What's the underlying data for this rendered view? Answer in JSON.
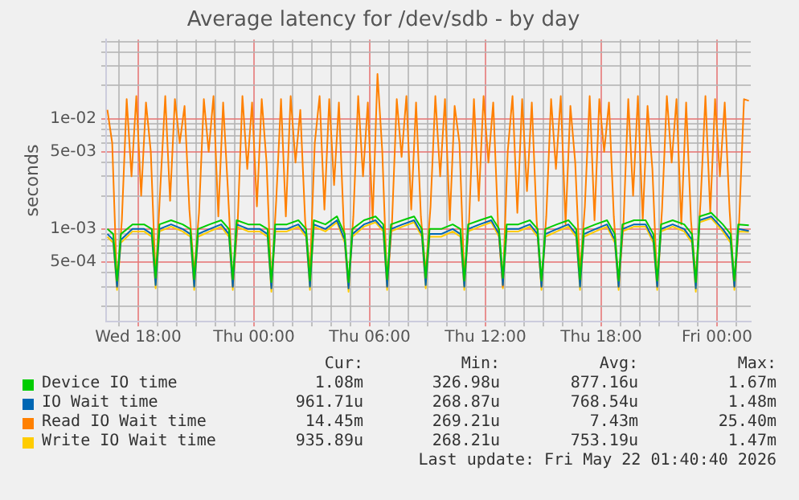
{
  "chart_data": {
    "type": "line",
    "title": "Average latency for /dev/sdb - by day",
    "ylabel": "seconds",
    "log": true,
    "grid": true,
    "legend": "bottom",
    "marker": "none",
    "line_style": "solid",
    "xlim": [
      "2026-05-20T16:20",
      "2026-05-22T01:45"
    ],
    "xticks": [
      {
        "value": "2026-05-20T17:00",
        "label": null
      },
      {
        "value": "2026-05-20T18:00",
        "label": "Wed 18:00"
      },
      {
        "value": "2026-05-20T19:00",
        "label": null
      },
      {
        "value": "2026-05-20T20:00",
        "label": null
      },
      {
        "value": "2026-05-20T21:00",
        "label": null
      },
      {
        "value": "2026-05-20T22:00",
        "label": null
      },
      {
        "value": "2026-05-20T23:00",
        "label": null
      },
      {
        "value": "2026-05-21T00:00",
        "label": "Thu 00:00"
      },
      {
        "value": "2026-05-21T01:00",
        "label": null
      },
      {
        "value": "2026-05-21T02:00",
        "label": null
      },
      {
        "value": "2026-05-21T03:00",
        "label": null
      },
      {
        "value": "2026-05-21T04:00",
        "label": null
      },
      {
        "value": "2026-05-21T05:00",
        "label": null
      },
      {
        "value": "2026-05-21T06:00",
        "label": "Thu 06:00"
      },
      {
        "value": "2026-05-21T07:00",
        "label": null
      },
      {
        "value": "2026-05-21T08:00",
        "label": null
      },
      {
        "value": "2026-05-21T09:00",
        "label": null
      },
      {
        "value": "2026-05-21T10:00",
        "label": null
      },
      {
        "value": "2026-05-21T11:00",
        "label": null
      },
      {
        "value": "2026-05-21T12:00",
        "label": "Thu 12:00"
      },
      {
        "value": "2026-05-21T13:00",
        "label": null
      },
      {
        "value": "2026-05-21T14:00",
        "label": null
      },
      {
        "value": "2026-05-21T15:00",
        "label": null
      },
      {
        "value": "2026-05-21T16:00",
        "label": null
      },
      {
        "value": "2026-05-21T17:00",
        "label": null
      },
      {
        "value": "2026-05-21T18:00",
        "label": "Thu 18:00"
      },
      {
        "value": "2026-05-21T19:00",
        "label": null
      },
      {
        "value": "2026-05-21T20:00",
        "label": null
      },
      {
        "value": "2026-05-21T21:00",
        "label": null
      },
      {
        "value": "2026-05-21T22:00",
        "label": null
      },
      {
        "value": "2026-05-21T23:00",
        "label": null
      },
      {
        "value": "2026-05-22T00:00",
        "label": "Fri 00:00"
      },
      {
        "value": "2026-05-22T01:00",
        "label": null
      }
    ],
    "ylim": [
      0.000145,
      0.052
    ],
    "yticks": [
      {
        "value": 0.0002,
        "label": null
      },
      {
        "value": 0.0003,
        "label": null
      },
      {
        "value": 0.0004,
        "label": null
      },
      {
        "value": 0.0005,
        "label": "5e-04"
      },
      {
        "value": 0.0006,
        "label": null
      },
      {
        "value": 0.0007,
        "label": null
      },
      {
        "value": 0.0008,
        "label": null
      },
      {
        "value": 0.0009,
        "label": null
      },
      {
        "value": 0.001,
        "label": "1e-03"
      },
      {
        "value": 0.002,
        "label": null
      },
      {
        "value": 0.003,
        "label": null
      },
      {
        "value": 0.004,
        "label": null
      },
      {
        "value": 0.005,
        "label": "5e-03"
      },
      {
        "value": 0.006,
        "label": null
      },
      {
        "value": 0.007,
        "label": null
      },
      {
        "value": 0.008,
        "label": null
      },
      {
        "value": 0.009,
        "label": null
      },
      {
        "value": 0.01,
        "label": "1e-02"
      },
      {
        "value": 0.02,
        "label": null
      },
      {
        "value": 0.03,
        "label": null
      },
      {
        "value": 0.04,
        "label": null
      },
      {
        "value": 0.05,
        "label": null
      }
    ],
    "x": [
      "2026-05-20T16:24",
      "2026-05-20T16:42",
      "2026-05-20T16:54",
      "2026-05-20T17:06",
      "2026-05-20T17:42",
      "2026-05-20T18:18",
      "2026-05-20T18:42",
      "2026-05-20T18:54",
      "2026-05-20T19:06",
      "2026-05-20T19:42",
      "2026-05-20T20:18",
      "2026-05-20T20:42",
      "2026-05-20T20:54",
      "2026-05-20T21:06",
      "2026-05-20T21:42",
      "2026-05-20T22:18",
      "2026-05-20T22:42",
      "2026-05-20T22:54",
      "2026-05-20T23:06",
      "2026-05-20T23:42",
      "2026-05-21T00:18",
      "2026-05-21T00:42",
      "2026-05-21T00:54",
      "2026-05-21T01:06",
      "2026-05-21T01:42",
      "2026-05-21T02:18",
      "2026-05-21T02:42",
      "2026-05-21T02:54",
      "2026-05-21T03:06",
      "2026-05-21T03:42",
      "2026-05-21T04:18",
      "2026-05-21T04:42",
      "2026-05-21T04:54",
      "2026-05-21T05:06",
      "2026-05-21T05:42",
      "2026-05-21T06:18",
      "2026-05-21T06:42",
      "2026-05-21T06:54",
      "2026-05-21T07:06",
      "2026-05-21T07:42",
      "2026-05-21T08:18",
      "2026-05-21T08:42",
      "2026-05-21T08:54",
      "2026-05-21T09:06",
      "2026-05-21T09:42",
      "2026-05-21T10:18",
      "2026-05-21T10:42",
      "2026-05-21T10:54",
      "2026-05-21T11:06",
      "2026-05-21T11:42",
      "2026-05-21T12:18",
      "2026-05-21T12:42",
      "2026-05-21T12:54",
      "2026-05-21T13:06",
      "2026-05-21T13:42",
      "2026-05-21T14:18",
      "2026-05-21T14:42",
      "2026-05-21T14:54",
      "2026-05-21T15:06",
      "2026-05-21T15:42",
      "2026-05-21T16:18",
      "2026-05-21T16:42",
      "2026-05-21T16:54",
      "2026-05-21T17:06",
      "2026-05-21T17:42",
      "2026-05-21T18:18",
      "2026-05-21T18:42",
      "2026-05-21T18:54",
      "2026-05-21T19:06",
      "2026-05-21T19:42",
      "2026-05-21T20:18",
      "2026-05-21T20:42",
      "2026-05-21T20:54",
      "2026-05-21T21:06",
      "2026-05-21T21:42",
      "2026-05-21T22:18",
      "2026-05-21T22:42",
      "2026-05-21T22:54",
      "2026-05-21T23:06",
      "2026-05-21T23:42",
      "2026-05-22T00:18",
      "2026-05-22T00:42",
      "2026-05-22T00:54",
      "2026-05-22T01:06",
      "2026-05-22T01:39"
    ],
    "series": [
      {
        "name": "Device IO time",
        "color": "#00cc00",
        "values": [
          0.001,
          0.0009,
          0.00034,
          0.0009,
          0.0011,
          0.0011,
          0.001,
          0.00036,
          0.0011,
          0.0012,
          0.0011,
          0.001,
          0.00035,
          0.001,
          0.0011,
          0.0012,
          0.001,
          0.00035,
          0.0012,
          0.0011,
          0.0011,
          0.001,
          0.00033,
          0.0011,
          0.0011,
          0.0012,
          0.001,
          0.00034,
          0.0012,
          0.0011,
          0.0013,
          0.0009,
          0.00033,
          0.001,
          0.0012,
          0.0013,
          0.0011,
          0.00035,
          0.0011,
          0.0012,
          0.0013,
          0.001,
          0.00036,
          0.001,
          0.001,
          0.0011,
          0.001,
          0.00034,
          0.0011,
          0.0012,
          0.0013,
          0.001,
          0.00036,
          0.0011,
          0.0011,
          0.0012,
          0.001,
          0.00034,
          0.001,
          0.0011,
          0.0012,
          0.001,
          0.00035,
          0.001,
          0.0011,
          0.0012,
          0.0009,
          0.00034,
          0.0011,
          0.0012,
          0.0012,
          0.0009,
          0.00034,
          0.0011,
          0.0012,
          0.0011,
          0.0009,
          0.00033,
          0.0013,
          0.0014,
          0.0011,
          0.0009,
          0.00034,
          0.0011,
          0.00108
        ]
      },
      {
        "name": "IO Wait time",
        "color": "#0066b3",
        "values": [
          0.0009,
          0.0008,
          0.0003,
          0.0008,
          0.001,
          0.001,
          0.0009,
          0.00031,
          0.001,
          0.0011,
          0.001,
          0.0009,
          0.0003,
          0.0009,
          0.001,
          0.0011,
          0.0009,
          0.0003,
          0.0011,
          0.001,
          0.001,
          0.0009,
          0.00029,
          0.001,
          0.001,
          0.0011,
          0.0009,
          0.0003,
          0.0011,
          0.001,
          0.0012,
          0.0008,
          0.00029,
          0.0009,
          0.0011,
          0.0012,
          0.001,
          0.0003,
          0.001,
          0.0011,
          0.0012,
          0.0009,
          0.00031,
          0.0009,
          0.0009,
          0.001,
          0.0009,
          0.0003,
          0.001,
          0.0011,
          0.0012,
          0.0009,
          0.00031,
          0.001,
          0.001,
          0.0011,
          0.0009,
          0.0003,
          0.0009,
          0.001,
          0.0011,
          0.0009,
          0.0003,
          0.0009,
          0.001,
          0.0011,
          0.0008,
          0.0003,
          0.001,
          0.0011,
          0.0011,
          0.0008,
          0.0003,
          0.001,
          0.0011,
          0.001,
          0.0008,
          0.00029,
          0.0012,
          0.0013,
          0.001,
          0.0008,
          0.0003,
          0.001,
          0.00096
        ]
      },
      {
        "name": "Read IO Wait time",
        "color": "#ff8000",
        "x": [
          "2026-05-20T16:24",
          "2026-05-20T16:39",
          "2026-05-20T16:54",
          "2026-05-20T17:09",
          "2026-05-20T17:24",
          "2026-05-20T17:39",
          "2026-05-20T17:54",
          "2026-05-20T18:09",
          "2026-05-20T18:24",
          "2026-05-20T18:39",
          "2026-05-20T18:54",
          "2026-05-20T19:09",
          "2026-05-20T19:24",
          "2026-05-20T19:39",
          "2026-05-20T19:54",
          "2026-05-20T20:09",
          "2026-05-20T20:24",
          "2026-05-20T20:39",
          "2026-05-20T20:54",
          "2026-05-20T21:09",
          "2026-05-20T21:24",
          "2026-05-20T21:39",
          "2026-05-20T21:54",
          "2026-05-20T22:09",
          "2026-05-20T22:24",
          "2026-05-20T22:39",
          "2026-05-20T22:54",
          "2026-05-20T23:09",
          "2026-05-20T23:24",
          "2026-05-20T23:39",
          "2026-05-20T23:54",
          "2026-05-21T00:09",
          "2026-05-21T00:24",
          "2026-05-21T00:39",
          "2026-05-21T00:54",
          "2026-05-21T01:09",
          "2026-05-21T01:24",
          "2026-05-21T01:39",
          "2026-05-21T01:54",
          "2026-05-21T02:09",
          "2026-05-21T02:24",
          "2026-05-21T02:39",
          "2026-05-21T02:54",
          "2026-05-21T03:09",
          "2026-05-21T03:24",
          "2026-05-21T03:39",
          "2026-05-21T03:54",
          "2026-05-21T04:09",
          "2026-05-21T04:24",
          "2026-05-21T04:39",
          "2026-05-21T04:54",
          "2026-05-21T05:09",
          "2026-05-21T05:24",
          "2026-05-21T05:39",
          "2026-05-21T05:54",
          "2026-05-21T06:09",
          "2026-05-21T06:24",
          "2026-05-21T06:39",
          "2026-05-21T06:54",
          "2026-05-21T07:09",
          "2026-05-21T07:24",
          "2026-05-21T07:39",
          "2026-05-21T07:54",
          "2026-05-21T08:09",
          "2026-05-21T08:24",
          "2026-05-21T08:39",
          "2026-05-21T08:54",
          "2026-05-21T09:09",
          "2026-05-21T09:24",
          "2026-05-21T09:39",
          "2026-05-21T09:54",
          "2026-05-21T10:09",
          "2026-05-21T10:24",
          "2026-05-21T10:39",
          "2026-05-21T10:54",
          "2026-05-21T11:09",
          "2026-05-21T11:24",
          "2026-05-21T11:39",
          "2026-05-21T11:54",
          "2026-05-21T12:09",
          "2026-05-21T12:24",
          "2026-05-21T12:39",
          "2026-05-21T12:54",
          "2026-05-21T13:09",
          "2026-05-21T13:24",
          "2026-05-21T13:39",
          "2026-05-21T13:54",
          "2026-05-21T14:09",
          "2026-05-21T14:24",
          "2026-05-21T14:39",
          "2026-05-21T14:54",
          "2026-05-21T15:09",
          "2026-05-21T15:24",
          "2026-05-21T15:39",
          "2026-05-21T15:54",
          "2026-05-21T16:09",
          "2026-05-21T16:24",
          "2026-05-21T16:39",
          "2026-05-21T16:54",
          "2026-05-21T17:09",
          "2026-05-21T17:24",
          "2026-05-21T17:39",
          "2026-05-21T17:54",
          "2026-05-21T18:09",
          "2026-05-21T18:24",
          "2026-05-21T18:39",
          "2026-05-21T18:54",
          "2026-05-21T19:09",
          "2026-05-21T19:24",
          "2026-05-21T19:39",
          "2026-05-21T19:54",
          "2026-05-21T20:09",
          "2026-05-21T20:24",
          "2026-05-21T20:39",
          "2026-05-21T20:54",
          "2026-05-21T21:09",
          "2026-05-21T21:24",
          "2026-05-21T21:39",
          "2026-05-21T21:54",
          "2026-05-21T22:09",
          "2026-05-21T22:24",
          "2026-05-21T22:39",
          "2026-05-21T22:54",
          "2026-05-21T23:09",
          "2026-05-21T23:24",
          "2026-05-21T23:39",
          "2026-05-21T23:54",
          "2026-05-22T00:09",
          "2026-05-22T00:24",
          "2026-05-22T00:39",
          "2026-05-22T00:54",
          "2026-05-22T01:09",
          "2026-05-22T01:24",
          "2026-05-22T01:39"
        ],
        "values": [
          0.012,
          0.006,
          0.0003,
          0.0012,
          0.015,
          0.003,
          0.016,
          0.002,
          0.014,
          0.005,
          0.00035,
          0.0025,
          0.016,
          0.0018,
          0.015,
          0.006,
          0.013,
          0.0015,
          0.0004,
          0.0014,
          0.015,
          0.005,
          0.016,
          0.0013,
          0.014,
          0.0022,
          0.0003,
          0.0011,
          0.016,
          0.0035,
          0.014,
          0.0016,
          0.015,
          0.004,
          0.0003,
          0.0018,
          0.015,
          0.0013,
          0.016,
          0.004,
          0.012,
          0.0012,
          0.0004,
          0.006,
          0.016,
          0.0015,
          0.015,
          0.0025,
          0.014,
          0.0011,
          0.0003,
          0.0013,
          0.016,
          0.003,
          0.014,
          0.0012,
          0.0254,
          0.005,
          0.0003,
          0.0011,
          0.015,
          0.0045,
          0.016,
          0.0015,
          0.014,
          0.0013,
          0.0004,
          0.0016,
          0.016,
          0.003,
          0.015,
          0.0012,
          0.013,
          0.006,
          0.00035,
          0.0012,
          0.015,
          0.0018,
          0.016,
          0.004,
          0.014,
          0.0011,
          0.0003,
          0.005,
          0.016,
          0.0014,
          0.015,
          0.0022,
          0.014,
          0.0012,
          0.0003,
          0.0013,
          0.015,
          0.0035,
          0.016,
          0.0011,
          0.013,
          0.004,
          0.0004,
          0.0016,
          0.016,
          0.0012,
          0.015,
          0.005,
          0.014,
          0.0013,
          0.0003,
          0.0011,
          0.015,
          0.002,
          0.016,
          0.0012,
          0.013,
          0.0035,
          0.0003,
          0.0015,
          0.016,
          0.004,
          0.015,
          0.0011,
          0.014,
          0.0012,
          0.00035,
          0.0018,
          0.016,
          0.0014,
          0.015,
          0.003,
          0.014,
          0.0015,
          0.0003,
          0.0012,
          0.015,
          0.0145
        ]
      },
      {
        "name": "Write IO Wait time",
        "color": "#ffcc00",
        "values": [
          0.00085,
          0.00075,
          0.00028,
          0.00075,
          0.00095,
          0.00095,
          0.00085,
          0.00029,
          0.00095,
          0.00105,
          0.00095,
          0.00085,
          0.00028,
          0.00085,
          0.00095,
          0.00105,
          0.00085,
          0.00028,
          0.00105,
          0.00095,
          0.00095,
          0.00085,
          0.00027,
          0.00095,
          0.00095,
          0.00105,
          0.00085,
          0.00028,
          0.00105,
          0.00095,
          0.00115,
          0.00075,
          0.00027,
          0.00085,
          0.00105,
          0.00115,
          0.00095,
          0.00028,
          0.00095,
          0.00105,
          0.00115,
          0.00085,
          0.00029,
          0.00085,
          0.00085,
          0.00095,
          0.00085,
          0.00028,
          0.00095,
          0.00105,
          0.00115,
          0.00085,
          0.00029,
          0.00095,
          0.00095,
          0.00105,
          0.00085,
          0.00028,
          0.00085,
          0.00095,
          0.00105,
          0.00085,
          0.00028,
          0.00085,
          0.00095,
          0.00105,
          0.00075,
          0.00028,
          0.00095,
          0.00105,
          0.00105,
          0.00075,
          0.00028,
          0.00095,
          0.00105,
          0.00095,
          0.00075,
          0.00027,
          0.00115,
          0.00125,
          0.00095,
          0.00075,
          0.00028,
          0.00095,
          0.00094
        ]
      }
    ],
    "annotations": [
      "Cur:",
      "Min:",
      "Avg:",
      "Max:",
      "1.08m",
      "326.98u",
      "877.16u",
      "1.67m",
      "961.71u",
      "268.87u",
      "768.54u",
      "1.48m",
      "14.45m",
      "269.21u",
      "7.43m",
      "25.40m",
      "935.89u",
      "268.21u",
      "753.19u",
      "1.47m",
      "Last update: Fri May 22 01:40:40 2026"
    ]
  }
}
